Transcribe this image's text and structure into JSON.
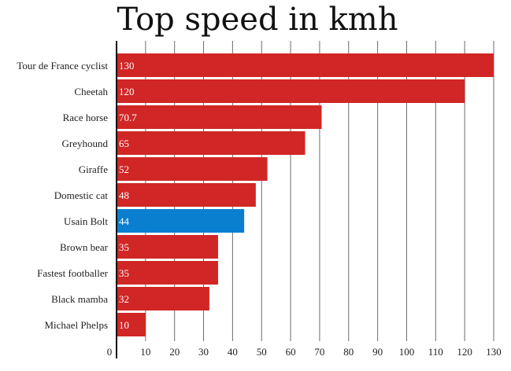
{
  "chart_data": {
    "type": "bar",
    "orientation": "horizontal",
    "title": "Top speed in kmh",
    "xlabel": "",
    "ylabel": "",
    "categories": [
      "Tour de France cyclist",
      "Cheetah",
      "Race horse",
      "Greyhound",
      "Giraffe",
      "Domestic cat",
      "Usain Bolt",
      "Brown bear",
      "Fastest footballer",
      "Black mamba",
      "Michael Phelps"
    ],
    "values": [
      130,
      120,
      70.7,
      65,
      52,
      48,
      44,
      35,
      35,
      32,
      10
    ],
    "value_labels": [
      "130",
      "120",
      "70.7",
      "65",
      "52",
      "48",
      "44",
      "35",
      "35",
      "32",
      "10"
    ],
    "highlight_category": "Usain Bolt",
    "colors": {
      "bar": "#d12626",
      "highlight": "#0a7fd0"
    },
    "xlim": [
      0,
      130
    ],
    "xticks": [
      0,
      10,
      20,
      30,
      40,
      50,
      60,
      70,
      80,
      90,
      100,
      110,
      120,
      130
    ],
    "grid": "vertical"
  }
}
